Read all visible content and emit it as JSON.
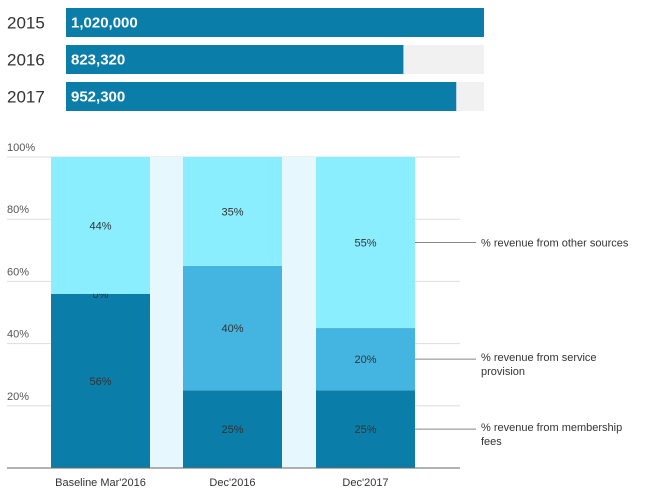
{
  "colors": {
    "bar": "#0a7ea8",
    "track": "#f1f1f1",
    "membership": "#0a7ea8",
    "service": "#44b5e0",
    "other": "#8aeeff",
    "connector": "#e6f8fd",
    "grid": "#dddddd",
    "axis": "#666666",
    "legend_line": "#888888"
  },
  "chart_data": [
    {
      "type": "bar",
      "orientation": "horizontal",
      "categories": [
        "2015",
        "2016",
        "2017"
      ],
      "values": [
        1020000,
        823320,
        952300
      ],
      "value_labels": [
        "1,020,000",
        "823,320",
        "952,300"
      ],
      "xlim": [
        0,
        1020000
      ]
    },
    {
      "type": "bar",
      "stacked": true,
      "categories": [
        "Baseline Mar'2016",
        "Dec'2016",
        "Dec'2017"
      ],
      "series": [
        {
          "name": "% revenue from membership fees",
          "values": [
            56,
            25,
            25
          ],
          "labels": [
            "56%",
            "25%",
            "25%"
          ]
        },
        {
          "name": "% revenue from service provision",
          "values": [
            0,
            40,
            20
          ],
          "labels": [
            "0%",
            "40%",
            "20%"
          ]
        },
        {
          "name": "% revenue from other sources",
          "values": [
            44,
            35,
            55
          ],
          "labels": [
            "44%",
            "35%",
            "55%"
          ]
        }
      ],
      "yticks": [
        "20%",
        "40%",
        "60%",
        "80%",
        "100%"
      ],
      "ylim": [
        0,
        100
      ],
      "grid": true,
      "legend": "right"
    }
  ]
}
